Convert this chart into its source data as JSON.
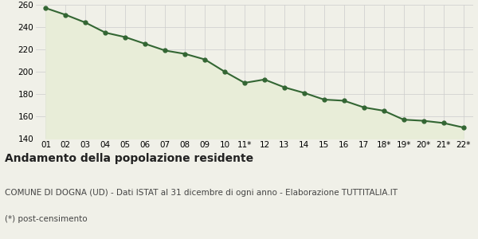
{
  "x_labels": [
    "01",
    "02",
    "03",
    "04",
    "05",
    "06",
    "07",
    "08",
    "09",
    "10",
    "11*",
    "12",
    "13",
    "14",
    "15",
    "16",
    "17",
    "18*",
    "19*",
    "20*",
    "21*",
    "22*"
  ],
  "y_values": [
    257,
    251,
    244,
    235,
    231,
    225,
    219,
    216,
    211,
    200,
    190,
    193,
    186,
    181,
    175,
    174,
    168,
    165,
    157,
    156,
    154,
    150
  ],
  "line_color": "#336633",
  "fill_color": "#e8edd8",
  "marker": "o",
  "marker_size": 3.5,
  "line_width": 1.5,
  "ylim": [
    140,
    260
  ],
  "yticks": [
    140,
    160,
    180,
    200,
    220,
    240,
    260
  ],
  "grid_color": "#cccccc",
  "plot_bg_color": "#f0f0e8",
  "fig_bg_color": "#f0f0e8",
  "title": "Andamento della popolazione residente",
  "subtitle": "COMUNE DI DOGNA (UD) - Dati ISTAT al 31 dicembre di ogni anno - Elaborazione TUTTITALIA.IT",
  "footnote": "(*) post-censimento",
  "title_fontsize": 10,
  "subtitle_fontsize": 7.5,
  "footnote_fontsize": 7.5,
  "tick_fontsize": 7.5
}
